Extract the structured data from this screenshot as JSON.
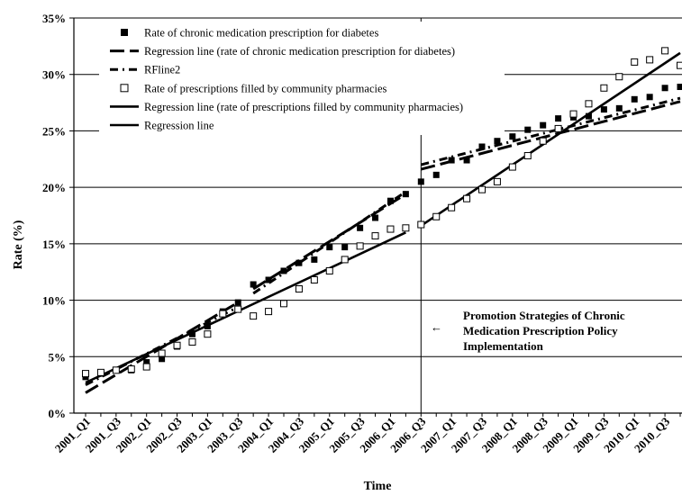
{
  "chart_data": {
    "type": "scatter",
    "xlabel": "Time",
    "ylabel": "Rate (%)",
    "ylim": [
      0,
      35
    ],
    "ytick_step": 5,
    "grid": "horizontal",
    "legend_placement": "top-left",
    "categories": [
      "2001_Q1",
      "2001_Q2",
      "2001_Q3",
      "2001_Q4",
      "2002_Q1",
      "2002_Q2",
      "2002_Q3",
      "2002_Q4",
      "2003_Q1",
      "2003_Q2",
      "2003_Q3",
      "2003_Q4",
      "2004_Q1",
      "2004_Q2",
      "2004_Q3",
      "2004_Q4",
      "2005_Q1",
      "2005_Q2",
      "2005_Q3",
      "2005_Q4",
      "2006_Q1",
      "2006_Q2",
      "2006_Q3",
      "2006_Q4",
      "2007_Q1",
      "2007_Q2",
      "2007_Q3",
      "2007_Q4",
      "2008_Q1",
      "2008_Q2",
      "2008_Q3",
      "2008_Q4",
      "2009_Q1",
      "2009_Q2",
      "2009_Q3",
      "2009_Q4",
      "2010_Q1",
      "2010_Q2",
      "2010_Q3",
      "2010_Q4"
    ],
    "tick_labels": [
      "2001_Q1",
      "2001_Q3",
      "2002_Q1",
      "2002_Q3",
      "2003_Q1",
      "2003_Q3",
      "2004_Q1",
      "2004_Q3",
      "2005_Q1",
      "2005_Q3",
      "2006_Q1",
      "2006_Q3",
      "2007_Q1",
      "2007_Q3",
      "2008_Q1",
      "2008_Q3",
      "2009_Q1",
      "2009_Q3",
      "2010_Q1",
      "2010_Q3"
    ],
    "series": [
      {
        "name": "Rate of chronic medication prescription for diabetes",
        "style": "filled-square",
        "values": [
          3.2,
          3.5,
          3.8,
          3.8,
          4.5,
          4.8,
          5.9,
          7.0,
          7.7,
          9.0,
          9.8,
          11.4,
          11.8,
          12.6,
          13.3,
          13.6,
          14.7,
          14.7,
          16.4,
          17.3,
          18.8,
          19.4,
          20.5,
          21.1,
          22.4,
          22.4,
          23.6,
          24.1,
          24.5,
          25.1,
          25.5,
          26.1,
          26.2,
          26.3,
          26.9,
          27.0,
          27.8,
          28.0,
          28.8,
          28.9
        ]
      },
      {
        "name": "Regression line (rate of chronic medication prescription for diabetes)",
        "style": "long-dash",
        "segments": [
          {
            "from": [
              "2001_Q1",
              1.8
            ],
            "to": [
              "2003_Q3",
              9.8
            ]
          },
          {
            "from": [
              "2003_Q4",
              11.0
            ],
            "to": [
              "2006_Q2",
              19.4
            ]
          },
          {
            "from": [
              "2006_Q3",
              21.6
            ],
            "to": [
              "2010_Q4",
              27.6
            ]
          }
        ]
      },
      {
        "name": "RFline2",
        "style": "dash-dot",
        "segments": [
          {
            "from": [
              "2001_Q1",
              2.5
            ],
            "to": [
              "2003_Q3",
              9.4
            ]
          },
          {
            "from": [
              "2003_Q4",
              10.6
            ],
            "to": [
              "2006_Q2",
              19.6
            ]
          },
          {
            "from": [
              "2006_Q3",
              22.0
            ],
            "to": [
              "2010_Q4",
              27.9
            ]
          }
        ]
      },
      {
        "name": "Rate of prescriptions filled by community pharmacies",
        "style": "open-square",
        "values": [
          3.5,
          3.6,
          3.8,
          3.9,
          4.1,
          5.3,
          6.0,
          6.3,
          7.0,
          8.8,
          9.2,
          8.6,
          9.0,
          9.7,
          11.0,
          11.8,
          12.6,
          13.6,
          14.8,
          15.7,
          16.3,
          16.4,
          16.7,
          17.4,
          18.2,
          19.0,
          19.8,
          20.5,
          21.8,
          22.8,
          24.1,
          25.2,
          26.5,
          27.4,
          28.8,
          29.8,
          31.1,
          31.3,
          32.1,
          30.8
        ]
      },
      {
        "name": "Regression line (rate of prescriptions filled by community pharmacies)",
        "style": "solid",
        "segments": [
          {
            "from": [
              "2001_Q1",
              2.7
            ],
            "to": [
              "2006_Q2",
              16.0
            ]
          },
          {
            "from": [
              "2006_Q3",
              16.6
            ],
            "to": [
              "2010_Q4",
              31.9
            ]
          }
        ]
      },
      {
        "name": "Regression line",
        "style": "solid",
        "segments": []
      }
    ],
    "intervention_at": "2006_Q3",
    "annotation": {
      "arrow": "←",
      "lines": [
        "Promotion Strategies of Chronic",
        "Medication Prescription Policy",
        "Implementation"
      ]
    }
  }
}
